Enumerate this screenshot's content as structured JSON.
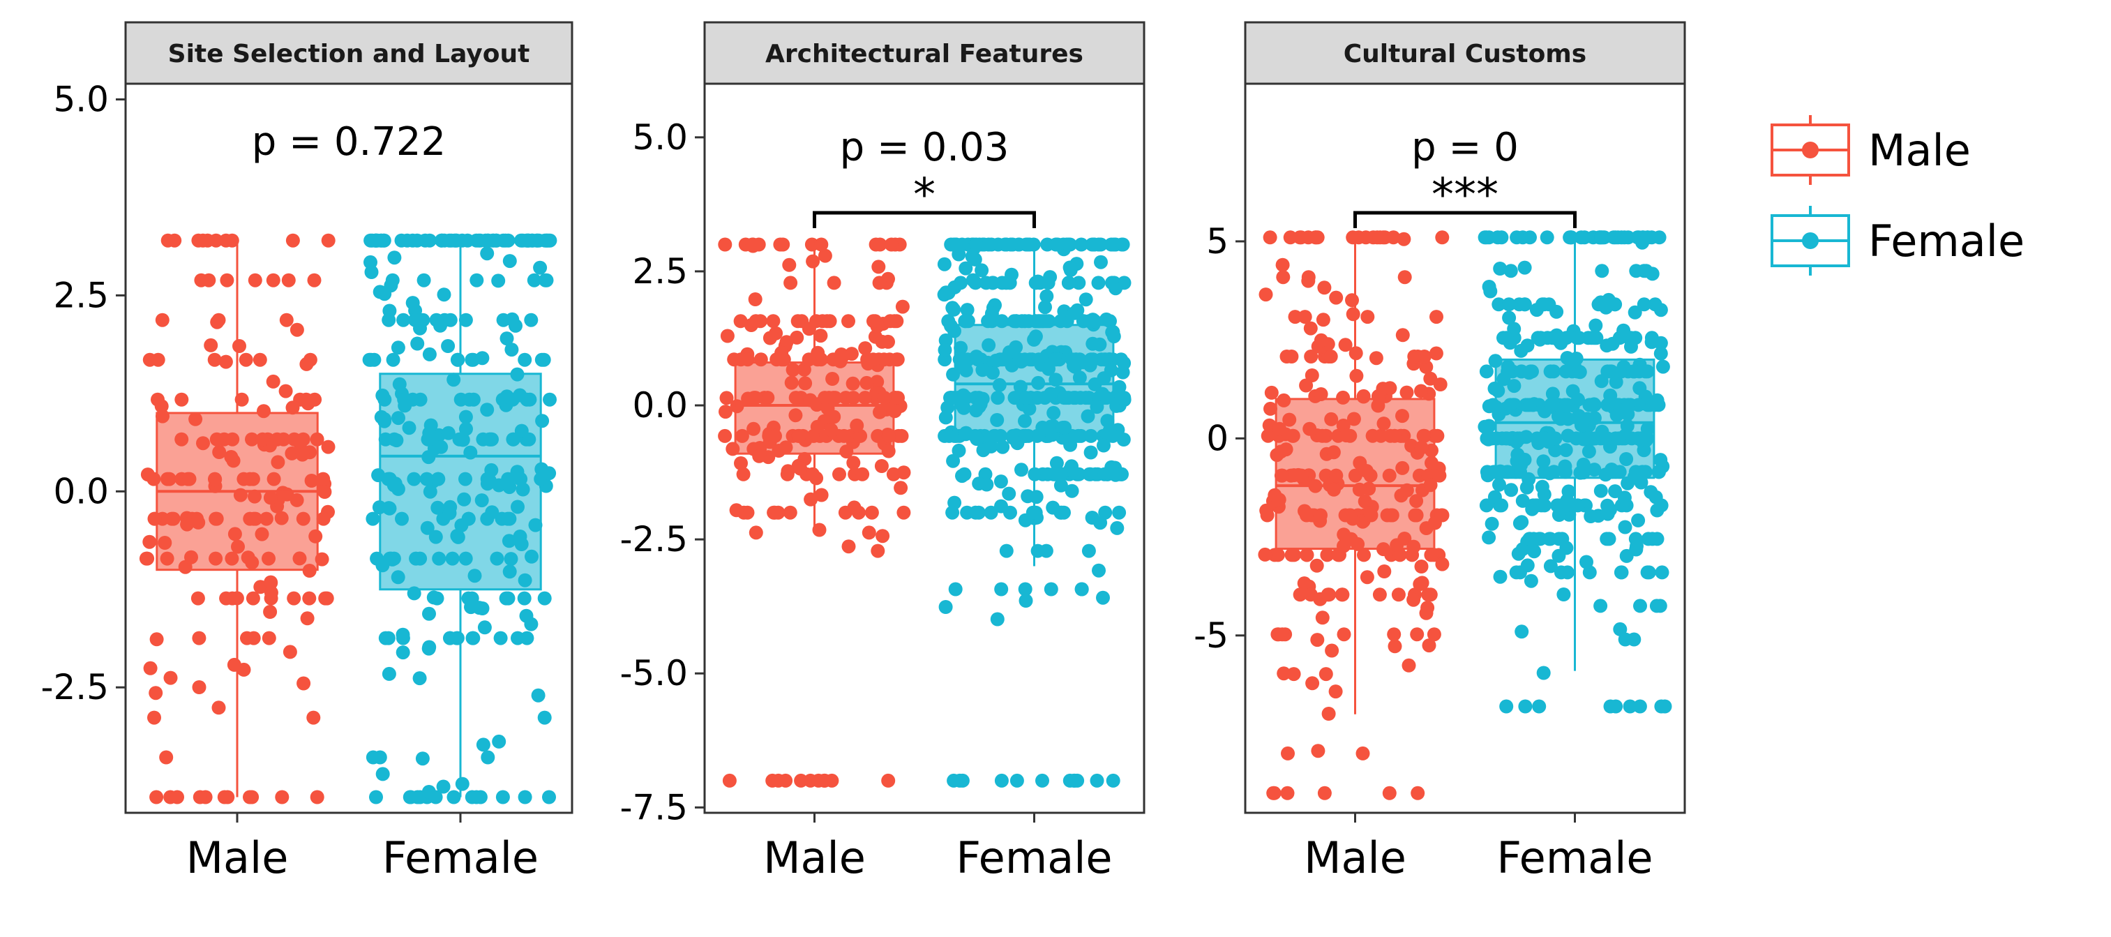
{
  "chart_data": {
    "type": "boxplot-jitter",
    "groups": [
      "Male",
      "Female"
    ],
    "colors": {
      "Male": "#F5533E",
      "Female": "#18B7D3"
    },
    "legend": {
      "placement": "right",
      "entries": [
        "Male",
        "Female"
      ]
    },
    "panels": [
      {
        "title": "Site Selection and Layout",
        "p_label": "p = 0.722",
        "signif": "",
        "ylim": [
          -4.1,
          5.2
        ],
        "yticks": [
          5.0,
          2.5,
          0.0,
          -2.5
        ],
        "ytick_labels": [
          "5.0",
          "2.5",
          "0.0",
          "-2.5"
        ],
        "boxes": [
          {
            "group": "Male",
            "min": -3.9,
            "q1": -1.0,
            "median": 0.0,
            "q3": 1.0,
            "max": 3.2
          },
          {
            "group": "Female",
            "min": -3.9,
            "q1": -1.25,
            "median": 0.45,
            "q3": 1.5,
            "max": 3.2
          }
        ],
        "n_points": [
          180,
          300
        ],
        "point_range": {
          "Male": [
            -3.9,
            3.2
          ],
          "Female": [
            -3.9,
            3.2
          ]
        }
      },
      {
        "title": "Architectural Features",
        "p_label": "p = 0.03",
        "signif": "*",
        "ylim": [
          -7.6,
          6.0
        ],
        "yticks": [
          5.0,
          2.5,
          0.0,
          -2.5,
          -5.0,
          -7.5
        ],
        "ytick_labels": [
          "5.0",
          "2.5",
          "0.0",
          "-2.5",
          "-5.0",
          "-7.5"
        ],
        "boxes": [
          {
            "group": "Male",
            "min": -2.3,
            "q1": -0.9,
            "median": 0.0,
            "q3": 0.8,
            "max": 3.0
          },
          {
            "group": "Female",
            "min": -3.0,
            "q1": -0.6,
            "median": 0.4,
            "q3": 1.5,
            "max": 3.0
          }
        ],
        "n_points": [
          220,
          420
        ],
        "point_range": {
          "Male": [
            -7.0,
            3.0
          ],
          "Female": [
            -7.0,
            3.0
          ]
        }
      },
      {
        "title": "Cultural Customs",
        "p_label": "p = 0",
        "signif": "***",
        "ylim": [
          -9.5,
          9.0
        ],
        "yticks": [
          5,
          0,
          -5
        ],
        "ytick_labels": [
          "5",
          "0",
          "-5"
        ],
        "boxes": [
          {
            "group": "Male",
            "min": -7.0,
            "q1": -2.8,
            "median": -1.2,
            "q3": 1.0,
            "max": 5.1
          },
          {
            "group": "Female",
            "min": -5.9,
            "q1": -1.0,
            "median": 0.4,
            "q3": 2.0,
            "max": 5.1
          }
        ],
        "n_points": [
          260,
          420
        ],
        "point_range": {
          "Male": [
            -9.0,
            5.1
          ],
          "Female": [
            -6.8,
            5.1
          ]
        }
      }
    ]
  }
}
